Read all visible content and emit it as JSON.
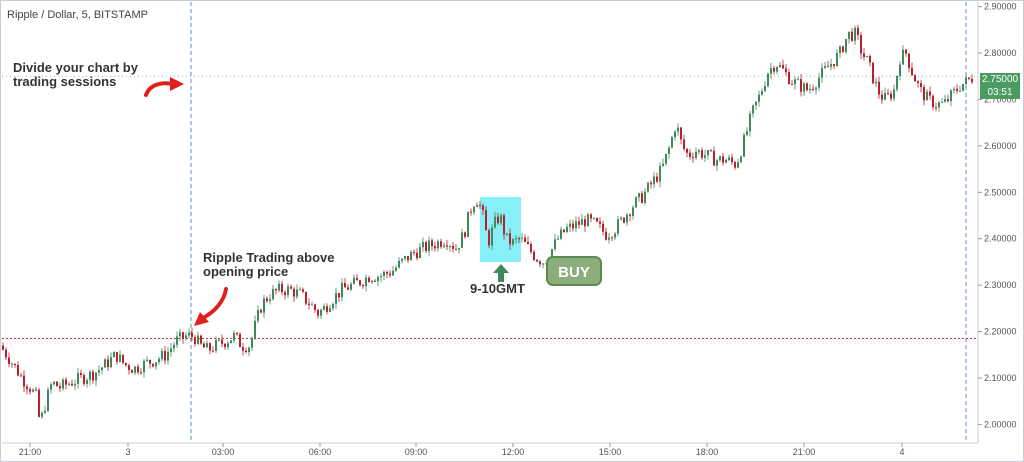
{
  "header": {
    "symbol_title": "Ripple / Dollar, 5, BITSTAMP"
  },
  "annotations": {
    "sessions_note_line1": "Divide your chart by",
    "sessions_note_line2": "trading sessions",
    "above_open_line1": "Ripple Trading above",
    "above_open_line2": "opening price",
    "time_window": "9-10GMT",
    "buy": "BUY"
  },
  "price_tag": {
    "price": "2.75000",
    "countdown": "03:51"
  },
  "colors": {
    "up": "#3f8a5c",
    "down": "#b8202c",
    "highlight": "#5ee9f5",
    "open_line": "#d33",
    "session_line": "#5b8fd6",
    "arrow": "#e0201e",
    "buy_bg": "#8cae7c",
    "price_tag": "#4a9b62"
  },
  "chart_data": {
    "type": "candlestick",
    "interval": "5",
    "exchange": "BITSTAMP",
    "ylim": [
      1.96,
      2.91
    ],
    "y_ticks": [
      "2.00000",
      "2.10000",
      "2.20000",
      "2.30000",
      "2.40000",
      "2.50000",
      "2.60000",
      "2.70000",
      "2.80000",
      "2.90000"
    ],
    "x_ticks": [
      "21:00",
      "3",
      "03:00",
      "06:00",
      "09:00",
      "12:00",
      "15:00",
      "18:00",
      "21:00",
      "4"
    ],
    "opening_price": 2.185,
    "last_price": 2.75,
    "path": [
      [
        0,
        2.17
      ],
      [
        10,
        2.14
      ],
      [
        22,
        2.1
      ],
      [
        30,
        2.08
      ],
      [
        36,
        2.06
      ],
      [
        40,
        2.0
      ],
      [
        46,
        2.05
      ],
      [
        52,
        2.09
      ],
      [
        60,
        2.08
      ],
      [
        70,
        2.09
      ],
      [
        82,
        2.1
      ],
      [
        94,
        2.11
      ],
      [
        106,
        2.13
      ],
      [
        116,
        2.15
      ],
      [
        124,
        2.13
      ],
      [
        134,
        2.12
      ],
      [
        144,
        2.13
      ],
      [
        156,
        2.14
      ],
      [
        166,
        2.15
      ],
      [
        176,
        2.18
      ],
      [
        186,
        2.19
      ],
      [
        194,
        2.19
      ],
      [
        200,
        2.17
      ],
      [
        208,
        2.16
      ],
      [
        216,
        2.17
      ],
      [
        226,
        2.18
      ],
      [
        234,
        2.19
      ],
      [
        242,
        2.17
      ],
      [
        250,
        2.17
      ],
      [
        256,
        2.22
      ],
      [
        262,
        2.26
      ],
      [
        270,
        2.28
      ],
      [
        280,
        2.29
      ],
      [
        290,
        2.29
      ],
      [
        300,
        2.28
      ],
      [
        310,
        2.26
      ],
      [
        318,
        2.24
      ],
      [
        324,
        2.25
      ],
      [
        332,
        2.27
      ],
      [
        342,
        2.29
      ],
      [
        352,
        2.3
      ],
      [
        362,
        2.31
      ],
      [
        370,
        2.32
      ],
      [
        380,
        2.32
      ],
      [
        392,
        2.33
      ],
      [
        402,
        2.35
      ],
      [
        414,
        2.37
      ],
      [
        424,
        2.38
      ],
      [
        436,
        2.39
      ],
      [
        446,
        2.4
      ],
      [
        456,
        2.38
      ],
      [
        464,
        2.41
      ],
      [
        470,
        2.46
      ],
      [
        476,
        2.49
      ],
      [
        482,
        2.46
      ],
      [
        488,
        2.39
      ],
      [
        494,
        2.43
      ],
      [
        500,
        2.45
      ],
      [
        506,
        2.4
      ],
      [
        512,
        2.39
      ],
      [
        520,
        2.4
      ],
      [
        528,
        2.38
      ],
      [
        536,
        2.36
      ],
      [
        544,
        2.35
      ],
      [
        550,
        2.37
      ],
      [
        558,
        2.4
      ],
      [
        566,
        2.42
      ],
      [
        576,
        2.43
      ],
      [
        586,
        2.44
      ],
      [
        596,
        2.43
      ],
      [
        606,
        2.41
      ],
      [
        614,
        2.42
      ],
      [
        622,
        2.44
      ],
      [
        632,
        2.47
      ],
      [
        642,
        2.49
      ],
      [
        652,
        2.52
      ],
      [
        662,
        2.55
      ],
      [
        670,
        2.6
      ],
      [
        676,
        2.65
      ],
      [
        682,
        2.6
      ],
      [
        688,
        2.58
      ],
      [
        696,
        2.59
      ],
      [
        706,
        2.58
      ],
      [
        716,
        2.57
      ],
      [
        726,
        2.57
      ],
      [
        736,
        2.56
      ],
      [
        744,
        2.61
      ],
      [
        752,
        2.67
      ],
      [
        760,
        2.71
      ],
      [
        768,
        2.76
      ],
      [
        776,
        2.78
      ],
      [
        784,
        2.76
      ],
      [
        792,
        2.74
      ],
      [
        800,
        2.73
      ],
      [
        808,
        2.72
      ],
      [
        816,
        2.74
      ],
      [
        824,
        2.76
      ],
      [
        832,
        2.78
      ],
      [
        840,
        2.8
      ],
      [
        848,
        2.84
      ],
      [
        856,
        2.84
      ],
      [
        862,
        2.8
      ],
      [
        868,
        2.78
      ],
      [
        874,
        2.74
      ],
      [
        880,
        2.71
      ],
      [
        886,
        2.7
      ],
      [
        894,
        2.72
      ],
      [
        900,
        2.79
      ],
      [
        906,
        2.8
      ],
      [
        912,
        2.76
      ],
      [
        920,
        2.72
      ],
      [
        928,
        2.7
      ],
      [
        936,
        2.69
      ],
      [
        944,
        2.69
      ],
      [
        952,
        2.71
      ],
      [
        960,
        2.73
      ],
      [
        968,
        2.74
      ],
      [
        974,
        2.75
      ]
    ]
  }
}
